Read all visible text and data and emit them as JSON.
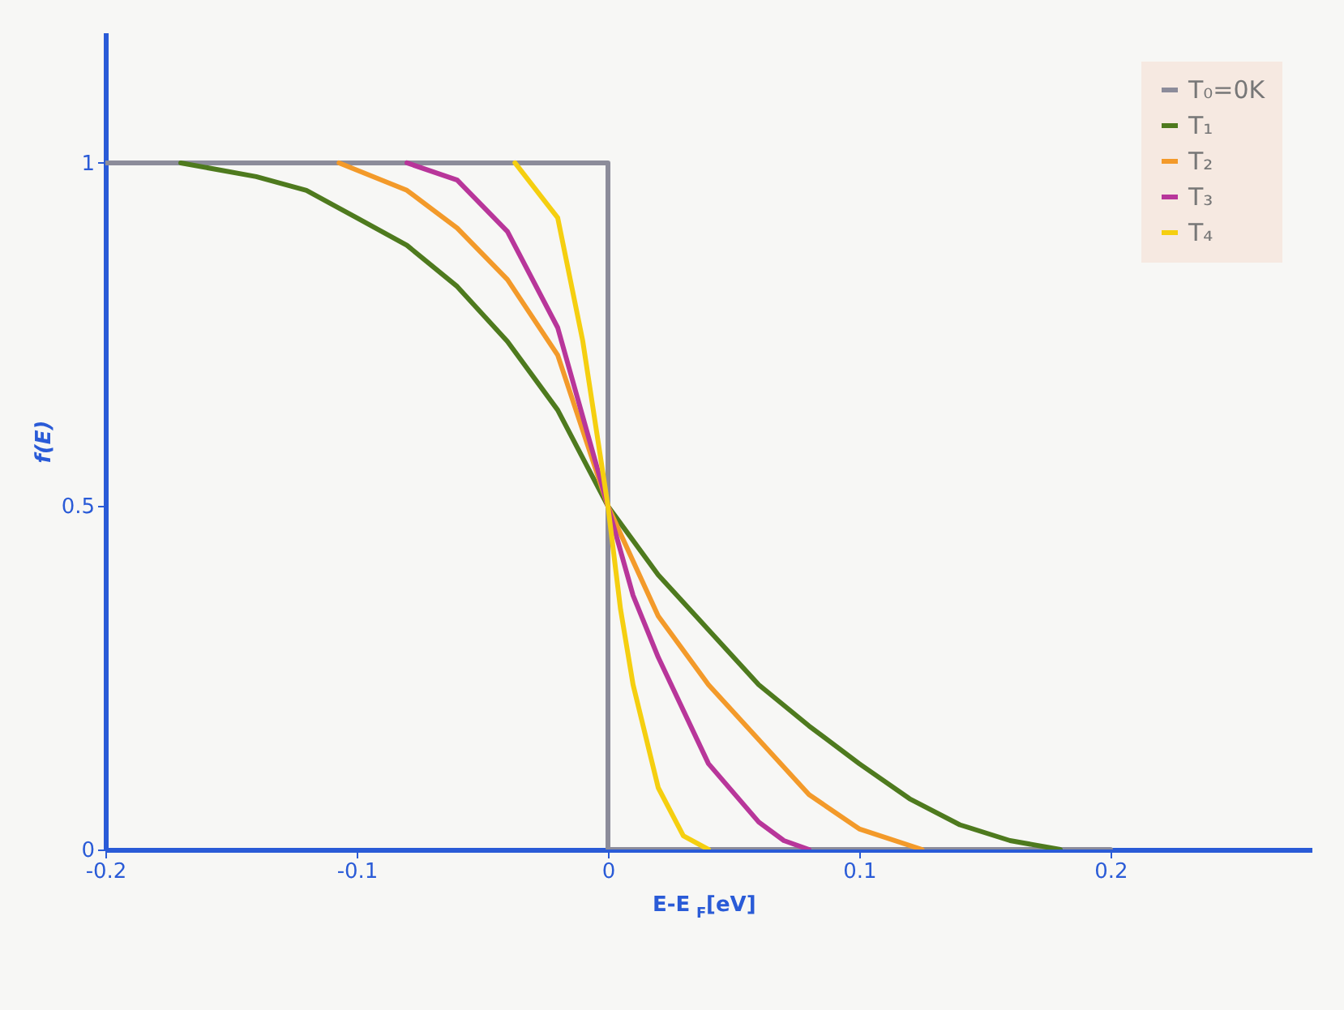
{
  "chart_data": {
    "type": "line",
    "xlabel": "E-E$_{F}$[eV]",
    "ylabel": "f(E)",
    "xlim": [
      -0.2,
      0.28
    ],
    "ylim": [
      0,
      1.19
    ],
    "xticks": [
      -0.2,
      -0.1,
      0,
      0.1,
      0.2
    ],
    "yticks": [
      0,
      0.5,
      1
    ],
    "grid": false,
    "legend": "top right",
    "marker": "none",
    "line_style": "solid",
    "series": [
      {
        "name": "T₀=0K",
        "color": "#8c8c9a",
        "x": [
          -0.2,
          0,
          0,
          0.2
        ],
        "values": [
          1,
          1,
          0,
          0
        ]
      },
      {
        "name": "T₁",
        "color": "#4e7a1e",
        "x": [
          -0.17,
          -0.14,
          -0.12,
          -0.1,
          -0.08,
          -0.06,
          -0.04,
          -0.02,
          0,
          0.02,
          0.04,
          0.06,
          0.08,
          0.1,
          0.12,
          0.14,
          0.16,
          0.18
        ],
        "values": [
          1,
          0.98,
          0.96,
          0.92,
          0.88,
          0.82,
          0.74,
          0.64,
          0.5,
          0.4,
          0.32,
          0.24,
          0.18,
          0.125,
          0.074,
          0.036,
          0.013,
          0
        ]
      },
      {
        "name": "T₂",
        "color": "#f39a2a",
        "x": [
          -0.107,
          -0.08,
          -0.06,
          -0.04,
          -0.02,
          0,
          0.02,
          0.04,
          0.06,
          0.08,
          0.1,
          0.125
        ],
        "values": [
          1,
          0.96,
          0.905,
          0.83,
          0.72,
          0.5,
          0.34,
          0.24,
          0.16,
          0.08,
          0.03,
          0
        ]
      },
      {
        "name": "T₃",
        "color": "#b8369a",
        "x": [
          -0.08,
          -0.06,
          -0.04,
          -0.02,
          0,
          0.01,
          0.02,
          0.04,
          0.06,
          0.07,
          0.08
        ],
        "values": [
          1,
          0.975,
          0.9,
          0.76,
          0.5,
          0.37,
          0.28,
          0.125,
          0.04,
          0.013,
          0
        ]
      },
      {
        "name": "T₄",
        "color": "#f5cf10",
        "x": [
          -0.037,
          -0.02,
          -0.01,
          0,
          0.005,
          0.01,
          0.02,
          0.03,
          0.04
        ],
        "values": [
          1,
          0.92,
          0.74,
          0.5,
          0.35,
          0.24,
          0.09,
          0.02,
          0
        ]
      }
    ]
  }
}
